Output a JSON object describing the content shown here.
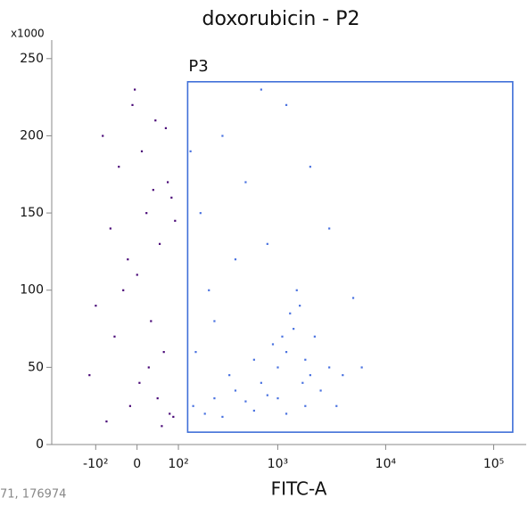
{
  "chart_data": {
    "type": "scatter",
    "title": "doxorubicin - P2",
    "xlabel": "FITC-A",
    "y_multiplier": "x1000",
    "status_text": "71, 176974",
    "xscale": "biexponential",
    "xlim": [
      -300,
      200000
    ],
    "xticks": [
      {
        "value": -100,
        "label": "-10²"
      },
      0,
      {
        "value": 100,
        "label": "10²"
      },
      {
        "value": 1000,
        "label": "10³"
      },
      {
        "value": 10000,
        "label": "10⁴"
      },
      {
        "value": 100000,
        "label": "10⁵"
      }
    ],
    "ylim": [
      0,
      262000
    ],
    "yticks": [
      {
        "value": 0,
        "label": "0"
      },
      {
        "value": 50000,
        "label": "50"
      },
      {
        "value": 100000,
        "label": "100"
      },
      {
        "value": 150000,
        "label": "150"
      },
      {
        "value": 200000,
        "label": "200"
      },
      {
        "value": 250000,
        "label": "250"
      }
    ],
    "gates": [
      {
        "label": "P3",
        "x": [
          130,
          150000
        ],
        "y": [
          8000,
          235000
        ],
        "color": "#3f6fd8"
      }
    ],
    "series": [
      {
        "color": "#4a0a78",
        "x": [
          -80,
          -40,
          -10,
          20,
          50,
          80,
          -60,
          -20,
          10,
          40,
          70,
          90,
          -100,
          -30,
          0,
          30,
          60,
          -50,
          5,
          45,
          75,
          -70,
          -15,
          25,
          55,
          85,
          -120,
          -5,
          35,
          65
        ],
        "y": [
          200000,
          180000,
          220000,
          150000,
          130000,
          160000,
          140000,
          120000,
          190000,
          210000,
          170000,
          145000,
          90000,
          100000,
          110000,
          80000,
          60000,
          70000,
          40000,
          30000,
          20000,
          15000,
          25000,
          50000,
          12000,
          18000,
          45000,
          230000,
          165000,
          205000
        ]
      },
      {
        "color": "#4a72e0",
        "x": [
          150,
          200,
          250,
          300,
          400,
          500,
          600,
          700,
          800,
          1000,
          1200,
          1400,
          1600,
          1800,
          2000,
          1300,
          1100,
          900,
          1500,
          1700,
          2500,
          3000,
          3500,
          4000,
          1000,
          1200,
          160,
          180,
          220,
          300,
          500,
          800,
          1200,
          2000,
          3000,
          5000,
          6000,
          700,
          400,
          250,
          1800,
          2200,
          600,
          350,
          140
        ],
        "y": [
          25000,
          20000,
          30000,
          18000,
          35000,
          28000,
          22000,
          40000,
          32000,
          50000,
          60000,
          75000,
          90000,
          55000,
          45000,
          85000,
          70000,
          65000,
          100000,
          40000,
          35000,
          50000,
          25000,
          45000,
          30000,
          20000,
          60000,
          150000,
          100000,
          200000,
          170000,
          130000,
          220000,
          180000,
          140000,
          95000,
          50000,
          230000,
          120000,
          80000,
          25000,
          70000,
          55000,
          45000,
          190000
        ]
      }
    ]
  }
}
